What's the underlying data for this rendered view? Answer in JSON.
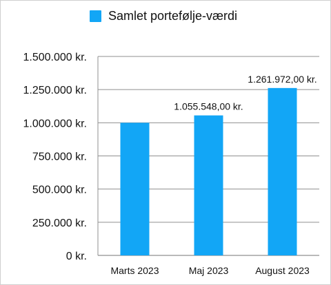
{
  "chart_data": {
    "type": "bar",
    "categories": [
      "Marts 2023",
      "Maj 2023",
      "August 2023"
    ],
    "series": [
      {
        "name": "Samlet portefølje-værdi",
        "values": [
          1000000,
          1055548,
          1261972
        ],
        "data_labels": [
          "",
          "1.055.548,00 kr.",
          "1.261.972,00 kr."
        ]
      }
    ],
    "yticks": [
      0,
      250000,
      500000,
      750000,
      1000000,
      1250000,
      1500000
    ],
    "ytick_labels": [
      "0 kr.",
      "250.000 kr.",
      "500.000 kr.",
      "750.000 kr.",
      "1.000.000 kr.",
      "1.250.000 kr.",
      "1.500.000 kr."
    ],
    "ylim": [
      0,
      1500000
    ],
    "xlabel": "",
    "ylabel": "",
    "grid": true,
    "legend_position": "top",
    "colors": {
      "bar": "#12a6f6",
      "grid": "#8f8f8f"
    }
  }
}
